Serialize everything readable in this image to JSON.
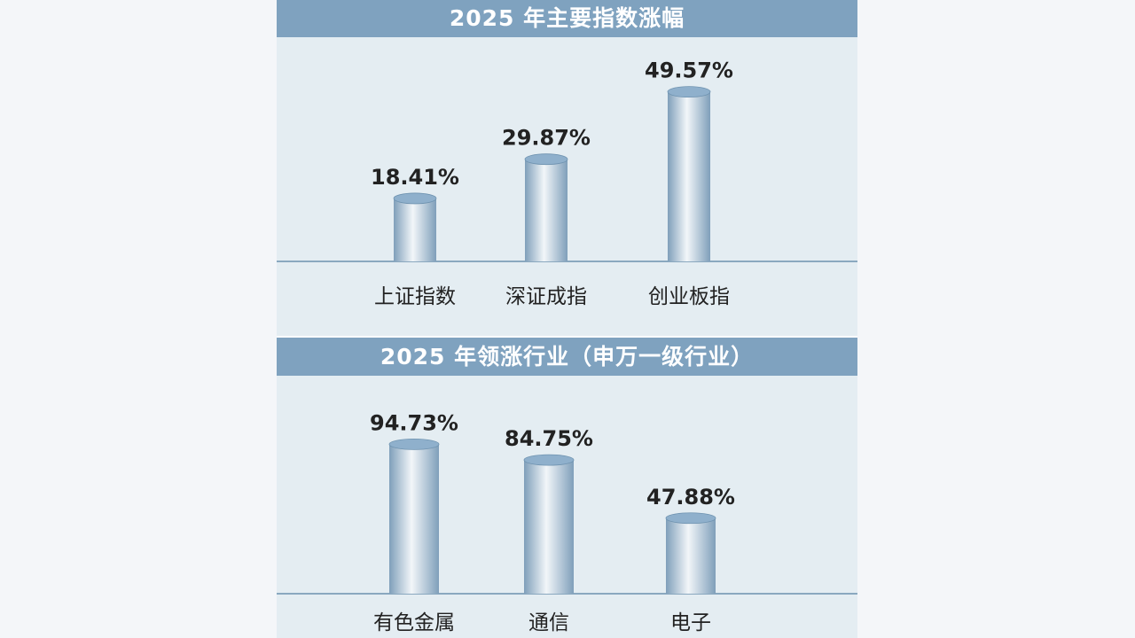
{
  "chart_data": [
    {
      "type": "bar",
      "title": "2025 年主要指数涨幅",
      "categories": [
        "上证指数",
        "深证成指",
        "创业板指"
      ],
      "values": [
        18.41,
        29.87,
        49.57
      ],
      "value_labels": [
        "18.41%",
        "29.87%",
        "49.57%"
      ],
      "bar_style": "3d-cylinder",
      "grid": false
    },
    {
      "type": "bar",
      "title": "2025 年领涨行业（申万一级行业）",
      "categories": [
        "有色金属",
        "通信",
        "电子"
      ],
      "values": [
        94.73,
        84.75,
        47.88
      ],
      "value_labels": [
        "94.73%",
        "84.75%",
        "47.88%"
      ],
      "bar_style": "3d-cylinder",
      "grid": false
    }
  ],
  "colors": {
    "header_band": "#7fa2bf",
    "panel_background": "#e4edf2",
    "cylinder_dark": "#7f9fba",
    "cylinder_light": "#f2f6f9",
    "cylinder_top": "#8fb0cc",
    "baseline": "#8aa8bf"
  }
}
